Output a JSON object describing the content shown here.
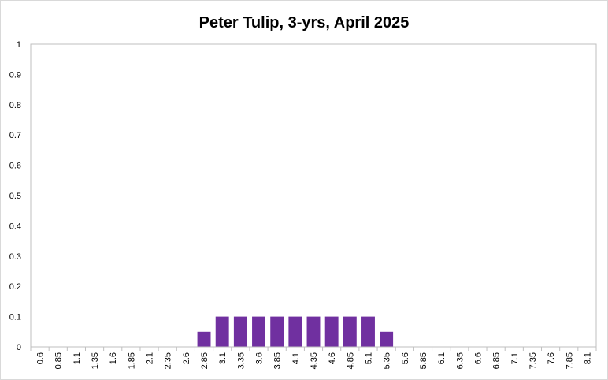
{
  "chart_data": {
    "type": "bar",
    "title": "Peter Tulip, 3-yrs, April 2025",
    "categories": [
      "0.6",
      "0.85",
      "1.1",
      "1.35",
      "1.6",
      "1.85",
      "2.1",
      "2.35",
      "2.6",
      "2.85",
      "3.1",
      "3.35",
      "3.6",
      "3.85",
      "4.1",
      "4.35",
      "4.6",
      "4.85",
      "5.1",
      "5.35",
      "5.6",
      "5.85",
      "6.1",
      "6.35",
      "6.6",
      "6.85",
      "7.1",
      "7.35",
      "7.6",
      "7.85",
      "8.1"
    ],
    "values": [
      0,
      0,
      0,
      0,
      0,
      0,
      0,
      0,
      0,
      0.05,
      0.1,
      0.1,
      0.1,
      0.1,
      0.1,
      0.1,
      0.1,
      0.1,
      0.1,
      0.05,
      0,
      0,
      0,
      0,
      0,
      0,
      0,
      0,
      0,
      0,
      0
    ],
    "y_ticks": [
      "0",
      "0.1",
      "0.2",
      "0.3",
      "0.4",
      "0.5",
      "0.6",
      "0.7",
      "0.8",
      "0.9",
      "1"
    ],
    "ylim": [
      0,
      1
    ],
    "xlabel": "",
    "ylabel": "",
    "grid": false,
    "legend": "none",
    "bar_color": "#7030a0"
  }
}
